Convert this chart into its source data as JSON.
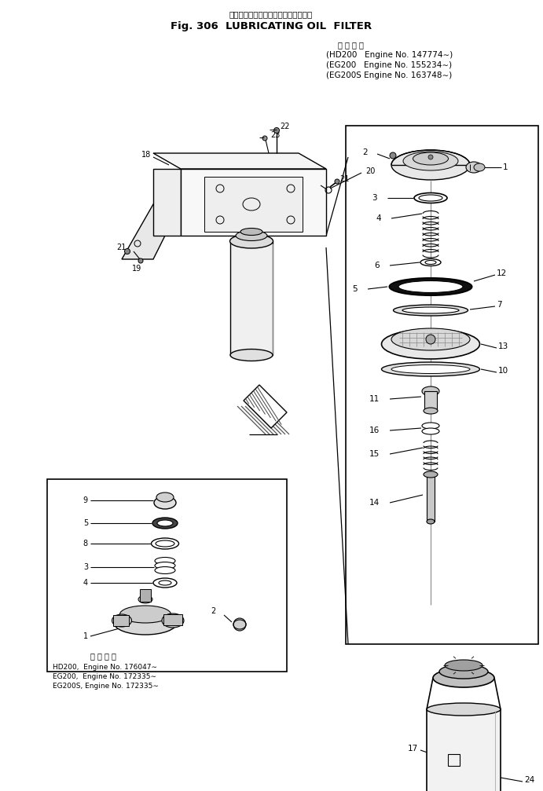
{
  "title_japanese": "ルーブリケーティングオイルフィルタ",
  "title_english": "Fig. 306  LUBRICATING OIL  FILTER",
  "top_label_japanese": "適 用 号 機",
  "top_specs": [
    "(HD200   Engine No. 147774∼)",
    "(EG200   Engine No. 155234∼)",
    "(EG200S Engine No. 163748∼)"
  ],
  "bottom_label_japanese": "適 用 号 機",
  "bottom_specs": [
    "HD200,  Engine No. 176047∼",
    "EG200,  Engine No. 172335∼",
    "EG200S, Engine No. 172335∼"
  ],
  "bg_color": "#ffffff",
  "line_color": "#000000",
  "text_color": "#000000"
}
